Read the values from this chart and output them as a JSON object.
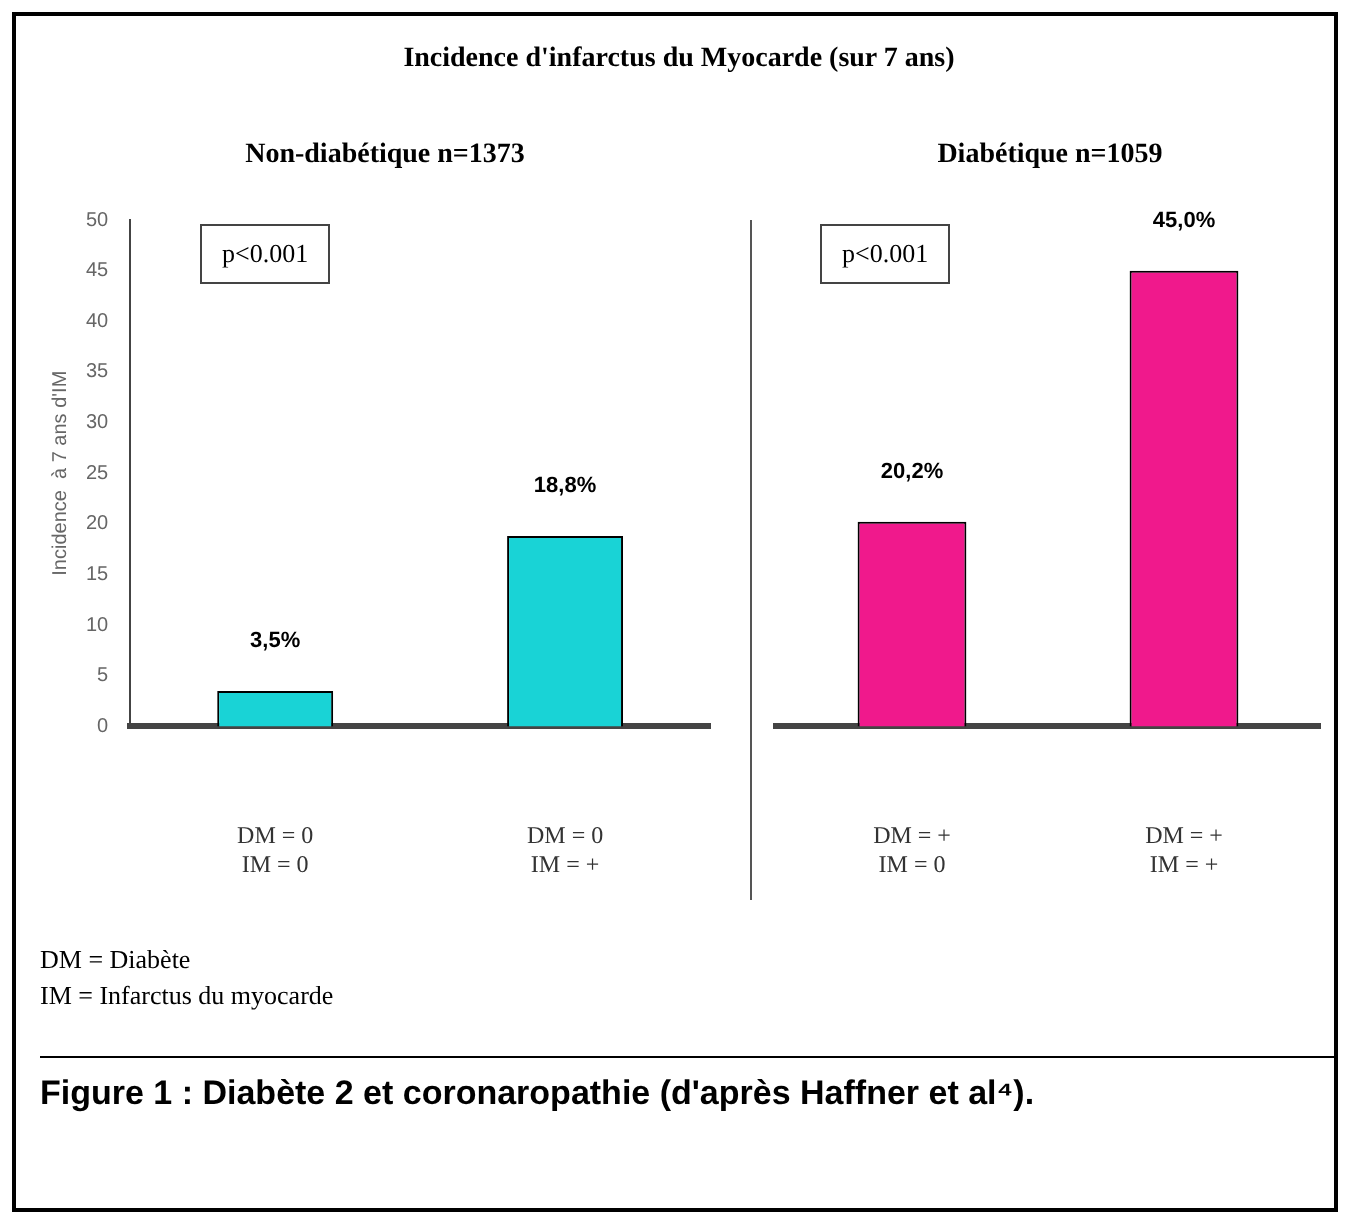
{
  "chart_data": [
    {
      "type": "bar",
      "title": "Incidence d'infarctus du Myocarde (sur 7 ans)",
      "subtitle": "Non-diabétique  n=1373",
      "ylabel": "Incidence  à 7 ans d'IM",
      "categories": [
        "DM = 0\nIM = 0",
        "DM = 0\nIM = +"
      ],
      "values": [
        3.5,
        18.8
      ],
      "color": "#19d3d6",
      "value_labels": [
        "3,5%",
        "18,8%"
      ],
      "ylim": [
        0,
        50
      ],
      "yticks": [
        0,
        5,
        10,
        15,
        20,
        25,
        30,
        35,
        40,
        45,
        50
      ],
      "grid": false,
      "annotations": [
        "p<0.001"
      ]
    },
    {
      "type": "bar",
      "subtitle": "Diabétique  n=1059",
      "categories": [
        "DM = +\nIM = 0",
        "DM = +\nIM = +"
      ],
      "values": [
        20.2,
        45.0
      ],
      "color": "#f0198c",
      "value_labels": [
        "20,2%",
        "45,0%"
      ],
      "ylim": [
        0,
        50
      ],
      "tick_labels": "x",
      "grid": false,
      "annotations": [
        "p<0.001",
        "DM = Diabète",
        "IM = Infarctus du myocarde",
        "Figure 1 : Diabète 2 et coronaropathie (d'après Haffner et al⁴)."
      ]
    }
  ]
}
